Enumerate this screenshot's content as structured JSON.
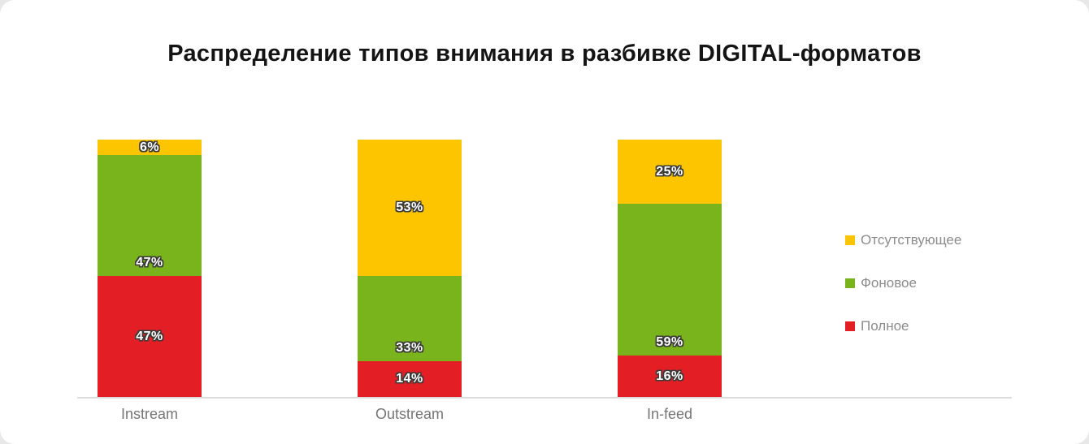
{
  "title": "Распределение типов внимания в разбивке DIGITAL-форматов",
  "chart_data": {
    "type": "bar",
    "variant": "stacked-column",
    "title": "Распределение типов внимания в разбивке DIGITAL-форматов",
    "categories": [
      "Instream",
      "Outstream",
      "In-feed"
    ],
    "series": [
      {
        "name": "Полное",
        "color": "#e31e24",
        "values": [
          47,
          14,
          16
        ],
        "label_position": "center"
      },
      {
        "name": "Фоновое",
        "color": "#7ab41c",
        "values": [
          47,
          33,
          59
        ],
        "label_position": "bottom"
      },
      {
        "name": "Отсутствующее",
        "color": "#fdc500",
        "values": [
          6,
          53,
          25
        ],
        "label_position": "center"
      }
    ],
    "value_suffix": "%",
    "ylim": [
      0,
      100
    ],
    "grid": false,
    "legend_position": "right"
  },
  "legend": {
    "items": [
      {
        "label": "Отсутствующее",
        "color": "#fdc500"
      },
      {
        "label": "Фоновое",
        "color": "#7ab41c"
      },
      {
        "label": "Полное",
        "color": "#e31e24"
      }
    ]
  }
}
